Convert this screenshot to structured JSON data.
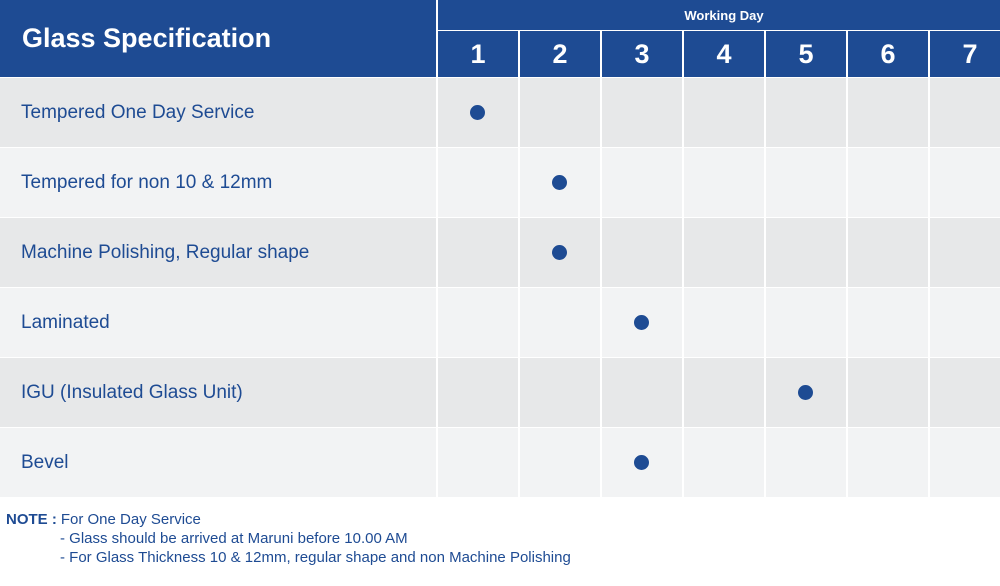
{
  "table": {
    "title": "Glass Specification",
    "group_header": "Working Day",
    "days": [
      "1",
      "2",
      "3",
      "4",
      "5",
      "6",
      "7"
    ],
    "rows": [
      {
        "label": "Tempered One Day Service",
        "day": 1
      },
      {
        "label": "Tempered for non 10 & 12mm",
        "day": 2
      },
      {
        "label": "Machine Polishing, Regular shape",
        "day": 2
      },
      {
        "label": "Laminated",
        "day": 3
      },
      {
        "label": "IGU (Insulated Glass Unit)",
        "day": 5
      },
      {
        "label": "Bevel",
        "day": 3
      }
    ]
  },
  "note": {
    "label": "NOTE :",
    "heading": "For One Day Service",
    "lines": [
      "- Glass should be arrived at Maruni before 10.00 AM",
      "- For Glass Thickness 10 & 12mm, regular shape and non Machine Polishing"
    ]
  },
  "colors": {
    "primary": "#1e4b93",
    "row_odd": "#e7e8e9",
    "row_even": "#f2f3f4"
  },
  "icons": {
    "marker": "filled-circle-icon"
  }
}
